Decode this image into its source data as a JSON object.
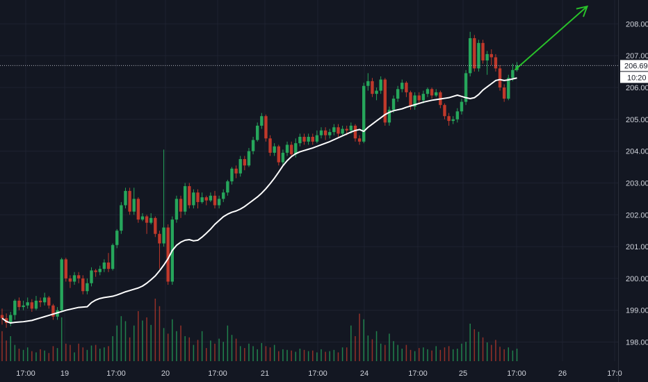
{
  "colors": {
    "background": "#131722",
    "grid": "#1e2230",
    "up": "#26a65b",
    "down": "#c0392b",
    "ma": "#ffffff",
    "arrow": "#29c22a",
    "price_line": "#b2b5be",
    "axis_text": "#d1d4dc"
  },
  "price_badge": {
    "price": "206.69",
    "countdown": "10:20"
  },
  "chart_data": {
    "type": "candlestick",
    "x_tick_labels": [
      "17:00",
      "19",
      "17:00",
      "20",
      "17:00",
      "21",
      "17:00",
      "24",
      "17:00",
      "25",
      "17:00",
      "26",
      "17:0"
    ],
    "y_tick_labels": [
      "198.00",
      "199.00",
      "200.00",
      "201.00",
      "202.00",
      "203.00",
      "204.00",
      "205.00",
      "206.00",
      "207.00",
      "208.00"
    ],
    "ylim": [
      197.4,
      208.75
    ],
    "last_price": 206.69,
    "grid": true,
    "candles": [
      [
        198.85,
        198.75,
        199.05,
        198.55
      ],
      [
        198.75,
        198.6,
        198.9,
        198.45
      ],
      [
        198.6,
        198.85,
        198.95,
        198.5
      ],
      [
        198.85,
        199.3,
        199.35,
        198.7
      ],
      [
        199.3,
        199.1,
        199.4,
        199.0
      ],
      [
        199.1,
        199.15,
        199.3,
        199.0
      ],
      [
        199.15,
        199.25,
        199.4,
        199.05
      ],
      [
        199.25,
        199.05,
        199.35,
        198.95
      ],
      [
        199.05,
        199.3,
        199.45,
        199.0
      ],
      [
        199.3,
        199.25,
        199.4,
        199.1
      ],
      [
        199.25,
        199.4,
        199.55,
        199.15
      ],
      [
        199.4,
        199.15,
        199.45,
        199.05
      ],
      [
        199.15,
        198.8,
        199.2,
        198.7
      ],
      [
        198.8,
        199.0,
        199.1,
        198.7
      ],
      [
        199.0,
        200.6,
        200.65,
        198.95
      ],
      [
        200.6,
        200.0,
        200.65,
        199.9
      ],
      [
        200.0,
        199.9,
        200.1,
        199.7
      ],
      [
        199.9,
        200.1,
        200.2,
        199.8
      ],
      [
        200.1,
        200.0,
        200.2,
        199.85
      ],
      [
        200.0,
        199.6,
        200.1,
        199.5
      ],
      [
        199.6,
        199.85,
        200.0,
        199.5
      ],
      [
        199.85,
        200.25,
        200.35,
        199.75
      ],
      [
        200.25,
        200.2,
        200.3,
        200.05
      ],
      [
        200.2,
        200.3,
        200.4,
        200.1
      ],
      [
        200.3,
        200.5,
        200.6,
        200.2
      ],
      [
        200.5,
        200.3,
        200.8,
        200.2
      ],
      [
        200.3,
        201.05,
        201.1,
        200.25
      ],
      [
        201.05,
        201.5,
        201.55,
        200.95
      ],
      [
        201.5,
        202.3,
        202.4,
        201.4
      ],
      [
        202.3,
        202.75,
        202.85,
        202.2
      ],
      [
        202.75,
        202.1,
        202.85,
        202.0
      ],
      [
        202.1,
        202.5,
        202.85,
        202.0
      ],
      [
        202.5,
        201.85,
        202.55,
        201.75
      ],
      [
        201.85,
        201.95,
        202.05,
        201.8
      ],
      [
        201.95,
        201.75,
        202.0,
        201.4
      ],
      [
        201.75,
        201.9,
        202.05,
        201.7
      ],
      [
        201.9,
        201.4,
        201.95,
        201.3
      ],
      [
        201.4,
        201.1,
        201.5,
        200.3
      ],
      [
        201.1,
        201.6,
        204.05,
        201.0
      ],
      [
        201.6,
        199.9,
        201.7,
        199.8
      ],
      [
        199.9,
        201.85,
        201.95,
        199.8
      ],
      [
        201.85,
        202.5,
        202.6,
        201.75
      ],
      [
        202.5,
        202.1,
        202.6,
        201.9
      ],
      [
        202.1,
        202.9,
        203.0,
        202.0
      ],
      [
        202.9,
        202.3,
        203.0,
        202.2
      ],
      [
        202.3,
        202.7,
        202.8,
        202.2
      ],
      [
        202.7,
        202.4,
        202.8,
        202.2
      ],
      [
        202.4,
        202.55,
        202.7,
        202.35
      ],
      [
        202.55,
        202.45,
        202.6,
        202.3
      ],
      [
        202.45,
        202.6,
        202.7,
        202.4
      ],
      [
        202.6,
        202.3,
        202.75,
        202.2
      ],
      [
        202.3,
        202.5,
        202.6,
        202.2
      ],
      [
        202.5,
        202.7,
        202.8,
        202.4
      ],
      [
        202.7,
        203.05,
        203.1,
        202.6
      ],
      [
        203.05,
        203.45,
        203.5,
        202.95
      ],
      [
        203.45,
        203.3,
        203.55,
        203.15
      ],
      [
        203.3,
        203.75,
        203.85,
        203.2
      ],
      [
        203.75,
        203.55,
        203.85,
        203.4
      ],
      [
        203.55,
        204.0,
        204.1,
        203.5
      ],
      [
        204.0,
        204.35,
        204.45,
        203.9
      ],
      [
        204.35,
        204.8,
        204.9,
        204.3
      ],
      [
        204.8,
        205.1,
        205.2,
        204.7
      ],
      [
        205.1,
        204.4,
        205.15,
        204.3
      ],
      [
        204.4,
        203.95,
        204.5,
        203.85
      ],
      [
        203.95,
        204.15,
        204.25,
        203.85
      ],
      [
        204.15,
        203.65,
        204.2,
        203.55
      ],
      [
        203.65,
        203.95,
        204.05,
        203.55
      ],
      [
        203.95,
        204.2,
        204.3,
        203.85
      ],
      [
        204.2,
        203.9,
        204.3,
        203.8
      ],
      [
        203.9,
        204.25,
        204.4,
        203.8
      ],
      [
        204.25,
        204.45,
        204.55,
        204.15
      ],
      [
        204.45,
        204.3,
        204.55,
        204.2
      ],
      [
        204.3,
        204.45,
        204.55,
        204.2
      ],
      [
        204.45,
        204.3,
        204.55,
        204.2
      ],
      [
        204.3,
        204.5,
        204.65,
        204.25
      ],
      [
        204.5,
        204.65,
        204.75,
        204.4
      ],
      [
        204.65,
        204.5,
        204.75,
        204.35
      ],
      [
        204.5,
        204.6,
        204.7,
        204.4
      ],
      [
        204.6,
        204.75,
        204.85,
        204.5
      ],
      [
        204.75,
        204.55,
        204.85,
        204.45
      ],
      [
        204.55,
        204.7,
        204.8,
        204.5
      ],
      [
        204.7,
        204.65,
        204.8,
        204.5
      ],
      [
        204.65,
        204.8,
        204.9,
        204.55
      ],
      [
        204.8,
        204.4,
        204.85,
        204.3
      ],
      [
        204.4,
        204.3,
        204.5,
        204.2
      ],
      [
        204.3,
        206.05,
        206.15,
        204.25
      ],
      [
        206.05,
        206.2,
        206.45,
        205.9
      ],
      [
        206.2,
        205.8,
        206.3,
        205.7
      ],
      [
        205.8,
        205.9,
        206.0,
        205.6
      ],
      [
        205.9,
        206.25,
        206.35,
        205.8
      ],
      [
        206.25,
        204.9,
        206.3,
        204.8
      ],
      [
        204.9,
        205.3,
        205.4,
        204.8
      ],
      [
        205.3,
        205.65,
        205.75,
        205.2
      ],
      [
        205.65,
        205.95,
        206.05,
        205.55
      ],
      [
        205.95,
        206.15,
        206.25,
        205.85
      ],
      [
        206.15,
        205.85,
        206.2,
        205.7
      ],
      [
        205.85,
        205.4,
        205.9,
        205.3
      ],
      [
        205.4,
        205.75,
        205.85,
        205.3
      ],
      [
        205.75,
        205.6,
        205.85,
        205.5
      ],
      [
        205.6,
        205.8,
        205.9,
        205.5
      ],
      [
        205.8,
        205.95,
        206.0,
        205.7
      ],
      [
        205.95,
        205.75,
        206.0,
        205.65
      ],
      [
        205.75,
        205.85,
        205.95,
        205.7
      ],
      [
        205.85,
        205.45,
        205.9,
        205.35
      ],
      [
        205.45,
        205.1,
        205.5,
        205.0
      ],
      [
        205.1,
        204.95,
        205.2,
        204.8
      ],
      [
        204.95,
        205.0,
        205.1,
        204.85
      ],
      [
        205.0,
        205.25,
        205.35,
        204.9
      ],
      [
        205.25,
        205.55,
        205.65,
        205.15
      ],
      [
        205.55,
        206.45,
        206.55,
        205.45
      ],
      [
        206.45,
        207.55,
        207.75,
        206.35
      ],
      [
        207.55,
        206.6,
        207.65,
        206.5
      ],
      [
        206.6,
        207.4,
        207.5,
        206.5
      ],
      [
        207.4,
        206.85,
        207.5,
        206.75
      ],
      [
        206.85,
        207.05,
        207.15,
        206.4
      ],
      [
        207.05,
        206.95,
        207.2,
        206.7
      ],
      [
        206.95,
        206.6,
        207.05,
        206.5
      ],
      [
        206.6,
        206.0,
        206.7,
        205.9
      ],
      [
        206.0,
        205.65,
        206.1,
        205.55
      ],
      [
        205.65,
        206.3,
        206.4,
        205.6
      ],
      [
        206.3,
        206.55,
        206.75,
        206.2
      ],
      [
        206.55,
        206.69,
        206.8,
        206.5
      ]
    ],
    "volume": [
      48,
      33,
      40,
      26,
      20,
      18,
      22,
      16,
      14,
      19,
      17,
      13,
      24,
      21,
      70,
      28,
      26,
      14,
      28,
      22,
      18,
      25,
      26,
      20,
      22,
      24,
      40,
      57,
      72,
      64,
      38,
      57,
      80,
      65,
      70,
      58,
      100,
      88,
      53,
      44,
      67,
      48,
      57,
      40,
      38,
      26,
      34,
      48,
      21,
      33,
      28,
      36,
      31,
      57,
      42,
      36,
      24,
      21,
      28,
      24,
      19,
      29,
      24,
      22,
      26,
      16,
      19,
      18,
      17,
      15,
      20,
      18,
      16,
      17,
      14,
      19,
      15,
      16,
      18,
      14,
      22,
      22,
      57,
      40,
      76,
      67,
      41,
      35,
      48,
      28,
      26,
      44,
      32,
      26,
      20,
      26,
      18,
      16,
      21,
      22,
      19,
      17,
      24,
      18,
      22,
      24,
      19,
      20,
      28,
      31,
      60,
      51,
      47,
      38,
      30,
      26,
      34,
      23,
      19,
      22,
      17,
      20
    ],
    "ma": [
      198.75,
      198.65,
      198.6,
      198.62,
      198.63,
      198.64,
      198.66,
      198.68,
      198.72,
      198.76,
      198.8,
      198.84,
      198.88,
      198.92,
      198.96,
      199.0,
      199.03,
      199.06,
      199.09,
      199.1,
      199.11,
      199.24,
      199.32,
      199.37,
      199.4,
      199.42,
      199.44,
      199.48,
      199.53,
      199.58,
      199.62,
      199.66,
      199.7,
      199.76,
      199.85,
      199.96,
      200.08,
      200.24,
      200.42,
      200.62,
      200.88,
      201.04,
      201.14,
      201.2,
      201.22,
      201.18,
      201.2,
      201.3,
      201.42,
      201.55,
      201.7,
      201.82,
      201.94,
      202.02,
      202.08,
      202.12,
      202.18,
      202.26,
      202.36,
      202.46,
      202.56,
      202.68,
      202.82,
      202.98,
      203.15,
      203.34,
      203.54,
      203.7,
      203.83,
      203.92,
      203.98,
      204.02,
      204.06,
      204.1,
      204.15,
      204.2,
      204.25,
      204.3,
      204.36,
      204.42,
      204.48,
      204.54,
      204.6,
      204.65,
      204.68,
      204.62,
      204.75,
      204.85,
      204.95,
      205.05,
      205.15,
      205.22,
      205.27,
      205.3,
      205.33,
      205.38,
      205.42,
      205.46,
      205.5,
      205.54,
      205.57,
      205.6,
      205.62,
      205.64,
      205.66,
      205.68,
      205.72,
      205.76,
      205.72,
      205.68,
      205.65,
      205.68,
      205.78,
      205.92,
      206.02,
      206.12,
      206.22,
      206.25,
      206.22,
      206.24,
      206.27,
      206.3
    ],
    "arrow": {
      "from": [
        120.5,
        206.55
      ],
      "to": [
        137.5,
        208.55
      ]
    }
  }
}
